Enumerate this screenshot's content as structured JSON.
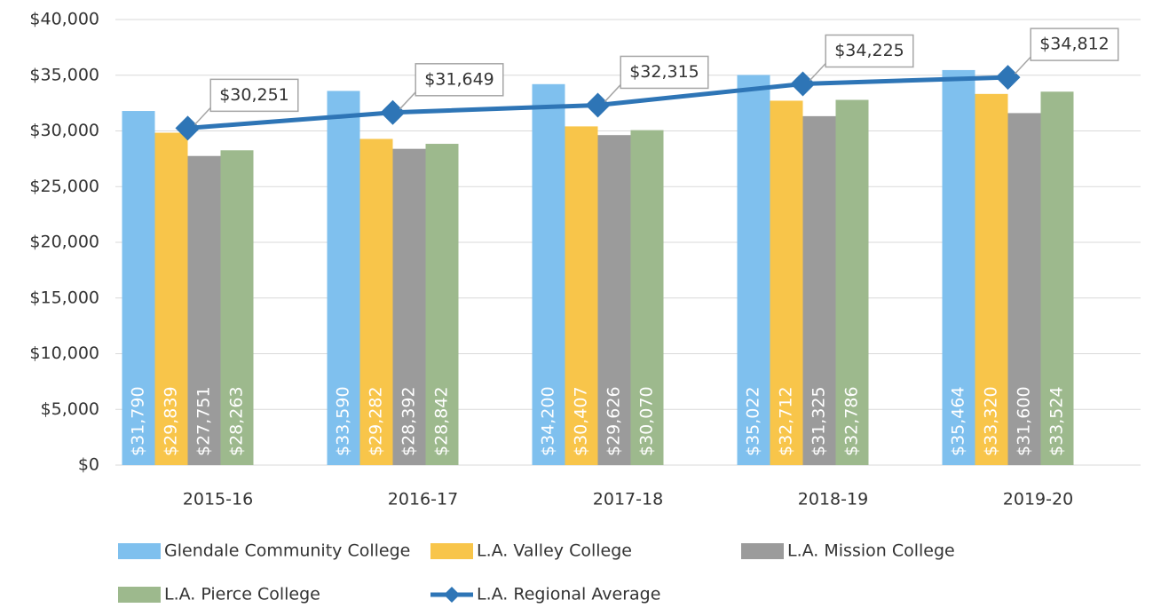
{
  "chart_data": {
    "type": "bar",
    "categories": [
      "2015-16",
      "2016-17",
      "2017-18",
      "2018-19",
      "2019-20"
    ],
    "series": [
      {
        "name": "Glendale Community College",
        "color": "#7fc0ee",
        "values": [
          31790,
          33590,
          34200,
          35022,
          35464
        ],
        "value_labels": [
          "$31,790",
          "$33,590",
          "$34,200",
          "$35,022",
          "$35,464"
        ]
      },
      {
        "name": "L.A. Valley College",
        "color": "#f8c54a",
        "values": [
          29839,
          29282,
          30407,
          32712,
          33320
        ],
        "value_labels": [
          "$29,839",
          "$29,282",
          "$30,407",
          "$32,712",
          "$33,320"
        ]
      },
      {
        "name": "L.A. Mission College",
        "color": "#9b9b9b",
        "values": [
          27751,
          28392,
          29626,
          31325,
          31600
        ],
        "value_labels": [
          "$27,751",
          "$28,392",
          "$29,626",
          "$31,325",
          "$31,600"
        ]
      },
      {
        "name": "L.A. Pierce College",
        "color": "#9db98d",
        "values": [
          28263,
          28842,
          30070,
          32786,
          33524
        ],
        "value_labels": [
          "$28,263",
          "$28,842",
          "$30,070",
          "$32,786",
          "$33,524"
        ]
      },
      {
        "name": "L.A. Regional Average",
        "color": "#2e75b6",
        "type": "line",
        "values": [
          30251,
          31649,
          32315,
          34225,
          34812
        ],
        "value_labels": [
          "$30,251",
          "$31,649",
          "$32,315",
          "$34,225",
          "$34,812"
        ]
      }
    ],
    "ylim": [
      0,
      40000
    ],
    "yticks": [
      {
        "value": 0,
        "label": "$0"
      },
      {
        "value": 5000,
        "label": "$5,000"
      },
      {
        "value": 10000,
        "label": "$10,000"
      },
      {
        "value": 15000,
        "label": "$15,000"
      },
      {
        "value": 20000,
        "label": "$20,000"
      },
      {
        "value": 25000,
        "label": "$25,000"
      },
      {
        "value": 30000,
        "label": "$30,000"
      },
      {
        "value": 35000,
        "label": "$35,000"
      },
      {
        "value": 40000,
        "label": "$40,000"
      }
    ],
    "grid": true,
    "legend": "bottom"
  }
}
